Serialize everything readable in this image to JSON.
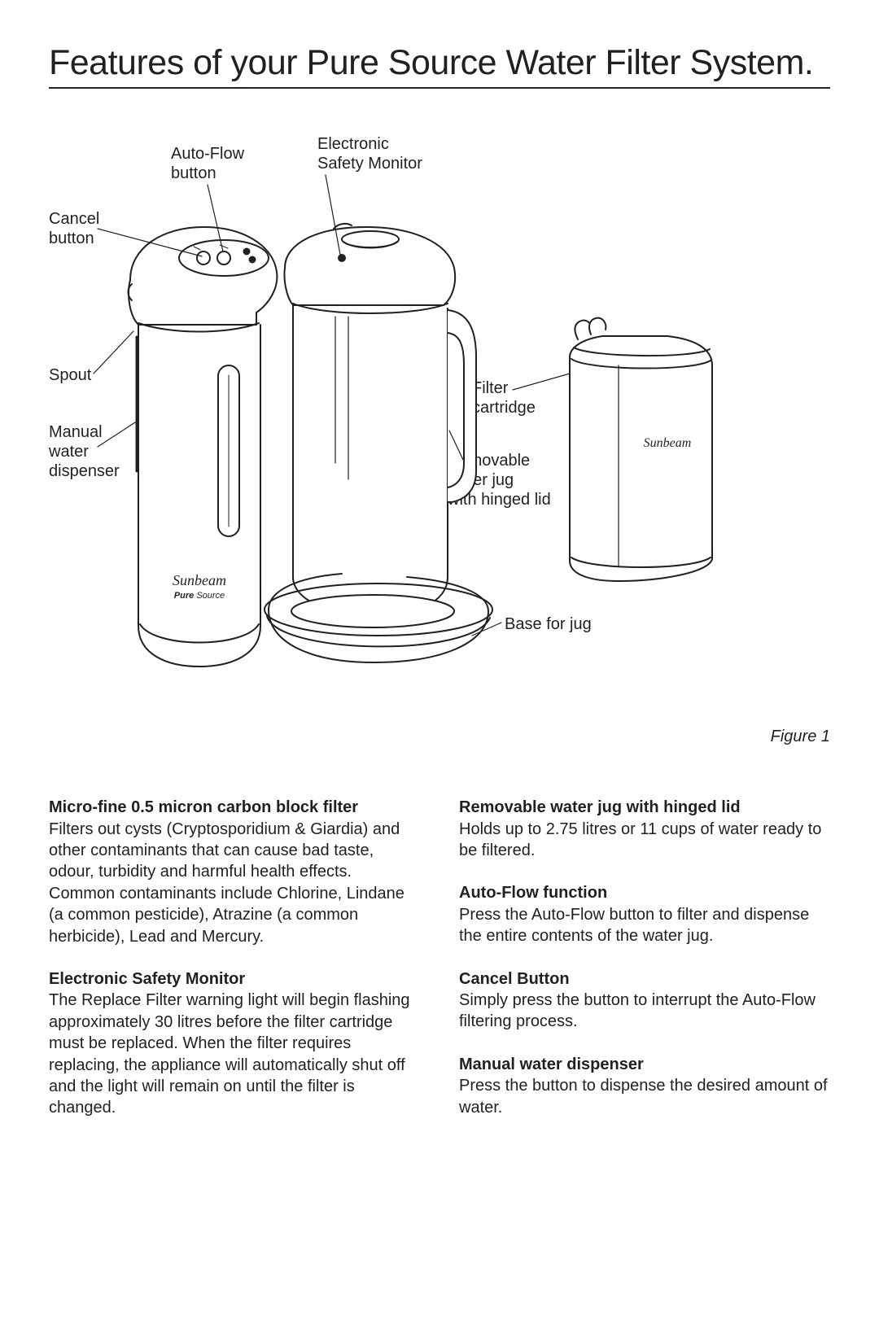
{
  "title": "Features of your Pure Source Water Filter System.",
  "figure_caption": "Figure 1",
  "labels": {
    "cancel_button": "Cancel\nbutton",
    "auto_flow_button": "Auto-Flow\nbutton",
    "electronic_safety_monitor": "Electronic\nSafety Monitor",
    "spout": "Spout",
    "manual_water_dispenser": "Manual\nwater\ndispenser",
    "filter_cartridge": "Filter\ncartridge",
    "removable_jug": "Removable\nwater jug\nwith hinged lid",
    "base_for_jug": "Base for jug"
  },
  "brand": {
    "script": "Sunbeam",
    "sub_bold": "Pure",
    "sub_light": "Source"
  },
  "features_left": [
    {
      "heading": "Micro-fine 0.5 micron carbon block filter",
      "body": "Filters out cysts (Cryptosporidium & Giardia) and other contaminants that can cause bad taste, odour, turbidity and harmful health effects. Common contaminants include Chlorine, Lindane (a common pesticide), Atrazine (a common herbicide), Lead and Mercury."
    },
    {
      "heading": "Electronic Safety Monitor",
      "body": "The Replace Filter warning light will begin flashing approximately 30 litres before the filter cartridge must be replaced. When the filter requires replacing, the appliance will automatically shut off and the light will remain on until the filter is changed."
    }
  ],
  "features_right": [
    {
      "heading": "Removable water jug with hinged lid",
      "body": "Holds up to 2.75 litres or 11 cups of water ready to be filtered."
    },
    {
      "heading": "Auto-Flow function",
      "body": "Press the Auto-Flow button to filter and dispense the entire contents of the water jug."
    },
    {
      "heading": "Cancel Button",
      "body": "Simply press the button to interrupt the Auto-Flow filtering process."
    },
    {
      "heading": "Manual water dispenser",
      "body": "Press the button to dispense the desired amount of water."
    }
  ],
  "colors": {
    "stroke": "#231f20",
    "bg": "#ffffff"
  }
}
